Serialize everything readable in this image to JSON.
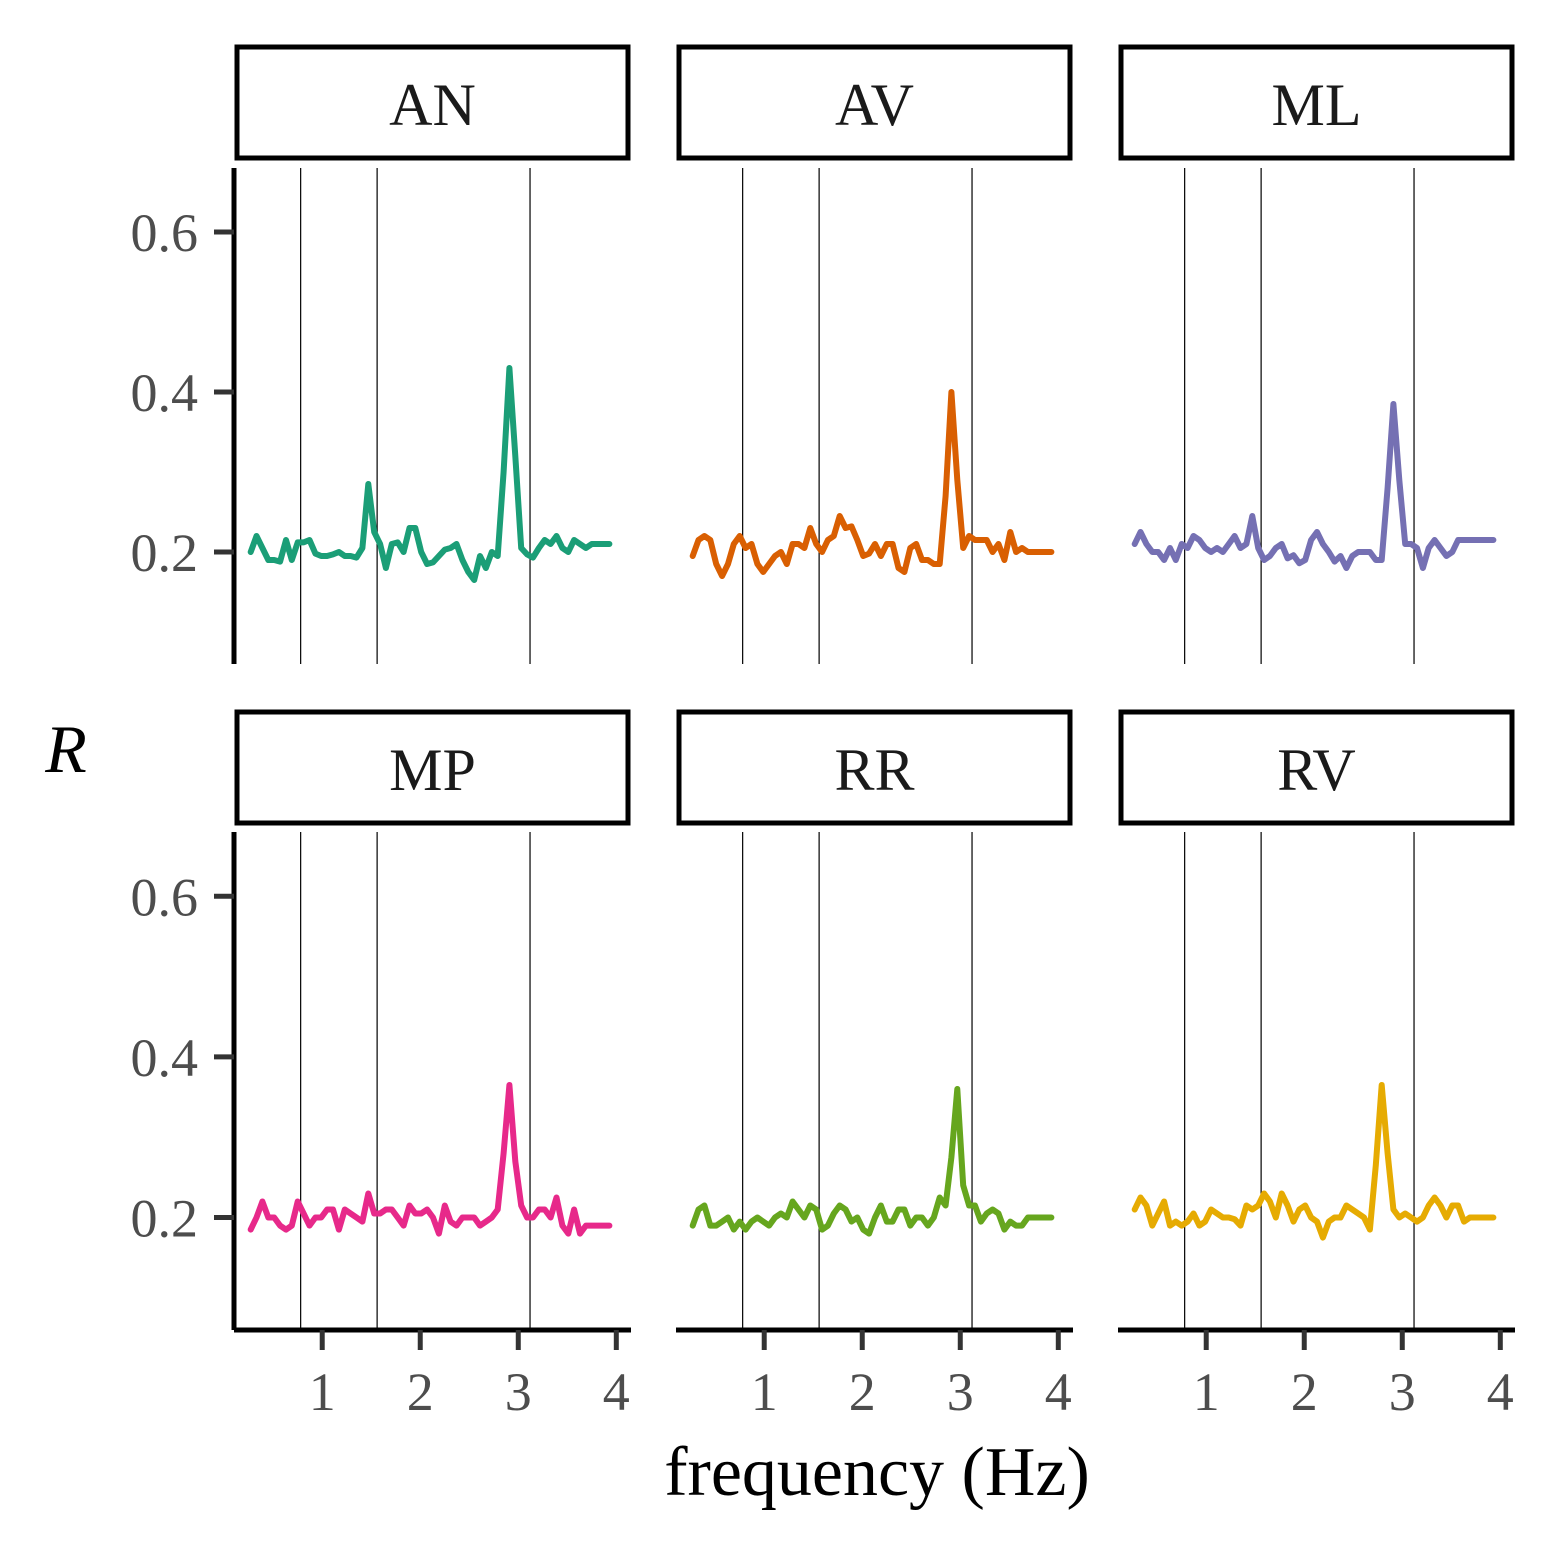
{
  "chart_data": {
    "type": "line",
    "xlabel": "frequency (Hz)",
    "ylabel": "R",
    "xlim": [
      0.1,
      4.15
    ],
    "ylim": [
      0.06,
      0.68
    ],
    "xticks": [
      1,
      2,
      3,
      4
    ],
    "yticks": [
      0.2,
      0.4,
      0.6
    ],
    "ytick_labels": [
      "0.2",
      "0.4",
      "0.6"
    ],
    "reference_lines_x": [
      0.78,
      1.56,
      3.12
    ],
    "grid": false,
    "legend": "none",
    "x": [
      0.27,
      0.33,
      0.39,
      0.45,
      0.51,
      0.57,
      0.63,
      0.69,
      0.75,
      0.81,
      0.87,
      0.93,
      0.99,
      1.05,
      1.11,
      1.17,
      1.23,
      1.29,
      1.35,
      1.41,
      1.47,
      1.53,
      1.59,
      1.65,
      1.71,
      1.77,
      1.83,
      1.89,
      1.95,
      2.01,
      2.07,
      2.13,
      2.19,
      2.25,
      2.31,
      2.37,
      2.43,
      2.49,
      2.55,
      2.61,
      2.67,
      2.73,
      2.79,
      2.85,
      2.91,
      2.97,
      3.03,
      3.09,
      3.15,
      3.21,
      3.27,
      3.33,
      3.39,
      3.45,
      3.51,
      3.57,
      3.63,
      3.69,
      3.75,
      3.81,
      3.87,
      3.93
    ],
    "series": [
      {
        "name": "AN",
        "color": "#1b9e77",
        "values": [
          0.2,
          0.22,
          0.205,
          0.19,
          0.19,
          0.188,
          0.215,
          0.19,
          0.212,
          0.212,
          0.215,
          0.198,
          0.195,
          0.195,
          0.197,
          0.2,
          0.195,
          0.195,
          0.193,
          0.205,
          0.285,
          0.225,
          0.21,
          0.18,
          0.21,
          0.212,
          0.2,
          0.23,
          0.23,
          0.2,
          0.185,
          0.187,
          0.195,
          0.203,
          0.205,
          0.21,
          0.19,
          0.175,
          0.165,
          0.195,
          0.18,
          0.2,
          0.195,
          0.3,
          0.43,
          0.32,
          0.205,
          0.197,
          0.193,
          0.205,
          0.215,
          0.21,
          0.22,
          0.205,
          0.2,
          0.215,
          0.21,
          0.205,
          0.21,
          0.21,
          0.21,
          0.21
        ]
      },
      {
        "name": "AV",
        "color": "#d95f02",
        "values": [
          0.195,
          0.215,
          0.22,
          0.215,
          0.185,
          0.17,
          0.185,
          0.21,
          0.22,
          0.205,
          0.21,
          0.185,
          0.175,
          0.185,
          0.195,
          0.2,
          0.185,
          0.21,
          0.21,
          0.205,
          0.23,
          0.21,
          0.2,
          0.215,
          0.22,
          0.245,
          0.23,
          0.232,
          0.215,
          0.195,
          0.198,
          0.21,
          0.195,
          0.21,
          0.21,
          0.18,
          0.175,
          0.205,
          0.21,
          0.19,
          0.19,
          0.185,
          0.185,
          0.27,
          0.4,
          0.29,
          0.205,
          0.22,
          0.215,
          0.215,
          0.215,
          0.2,
          0.21,
          0.19,
          0.225,
          0.2,
          0.205,
          0.2,
          0.2,
          0.2,
          0.2,
          0.2
        ]
      },
      {
        "name": "ML",
        "color": "#7570b3",
        "values": [
          0.21,
          0.225,
          0.21,
          0.2,
          0.2,
          0.19,
          0.205,
          0.19,
          0.21,
          0.205,
          0.22,
          0.215,
          0.205,
          0.2,
          0.205,
          0.2,
          0.21,
          0.22,
          0.205,
          0.21,
          0.245,
          0.205,
          0.19,
          0.195,
          0.205,
          0.21,
          0.192,
          0.196,
          0.186,
          0.19,
          0.215,
          0.225,
          0.21,
          0.2,
          0.188,
          0.195,
          0.18,
          0.195,
          0.2,
          0.2,
          0.2,
          0.19,
          0.19,
          0.28,
          0.385,
          0.29,
          0.21,
          0.21,
          0.205,
          0.18,
          0.205,
          0.215,
          0.205,
          0.195,
          0.2,
          0.215,
          0.215,
          0.215,
          0.215,
          0.215,
          0.215,
          0.215
        ]
      },
      {
        "name": "MP",
        "color": "#e7298a",
        "values": [
          0.185,
          0.2,
          0.22,
          0.2,
          0.2,
          0.19,
          0.185,
          0.19,
          0.22,
          0.205,
          0.19,
          0.2,
          0.2,
          0.21,
          0.21,
          0.185,
          0.21,
          0.205,
          0.2,
          0.195,
          0.23,
          0.205,
          0.205,
          0.21,
          0.21,
          0.2,
          0.19,
          0.215,
          0.205,
          0.205,
          0.21,
          0.2,
          0.18,
          0.215,
          0.195,
          0.19,
          0.2,
          0.2,
          0.2,
          0.19,
          0.195,
          0.2,
          0.21,
          0.28,
          0.365,
          0.27,
          0.215,
          0.2,
          0.2,
          0.21,
          0.21,
          0.2,
          0.225,
          0.19,
          0.18,
          0.21,
          0.18,
          0.19,
          0.19,
          0.19,
          0.19,
          0.19
        ]
      },
      {
        "name": "RR",
        "color": "#66a61e",
        "values": [
          0.19,
          0.21,
          0.215,
          0.19,
          0.19,
          0.195,
          0.2,
          0.185,
          0.195,
          0.185,
          0.195,
          0.2,
          0.195,
          0.19,
          0.2,
          0.205,
          0.2,
          0.22,
          0.21,
          0.2,
          0.215,
          0.21,
          0.185,
          0.19,
          0.205,
          0.215,
          0.21,
          0.195,
          0.2,
          0.185,
          0.18,
          0.2,
          0.215,
          0.195,
          0.195,
          0.21,
          0.21,
          0.19,
          0.2,
          0.2,
          0.19,
          0.2,
          0.225,
          0.215,
          0.275,
          0.36,
          0.24,
          0.215,
          0.215,
          0.195,
          0.205,
          0.21,
          0.205,
          0.185,
          0.195,
          0.19,
          0.19,
          0.2,
          0.2,
          0.2,
          0.2,
          0.2
        ]
      },
      {
        "name": "RV",
        "color": "#e6ab02",
        "values": [
          0.21,
          0.225,
          0.215,
          0.19,
          0.205,
          0.22,
          0.19,
          0.195,
          0.19,
          0.195,
          0.205,
          0.19,
          0.195,
          0.21,
          0.205,
          0.2,
          0.2,
          0.198,
          0.19,
          0.215,
          0.21,
          0.215,
          0.23,
          0.22,
          0.2,
          0.23,
          0.215,
          0.195,
          0.21,
          0.215,
          0.2,
          0.195,
          0.175,
          0.195,
          0.2,
          0.2,
          0.215,
          0.21,
          0.205,
          0.2,
          0.185,
          0.265,
          0.365,
          0.28,
          0.21,
          0.2,
          0.205,
          0.2,
          0.195,
          0.2,
          0.215,
          0.225,
          0.215,
          0.2,
          0.215,
          0.215,
          0.195,
          0.2,
          0.2,
          0.2,
          0.2,
          0.2
        ]
      }
    ]
  }
}
